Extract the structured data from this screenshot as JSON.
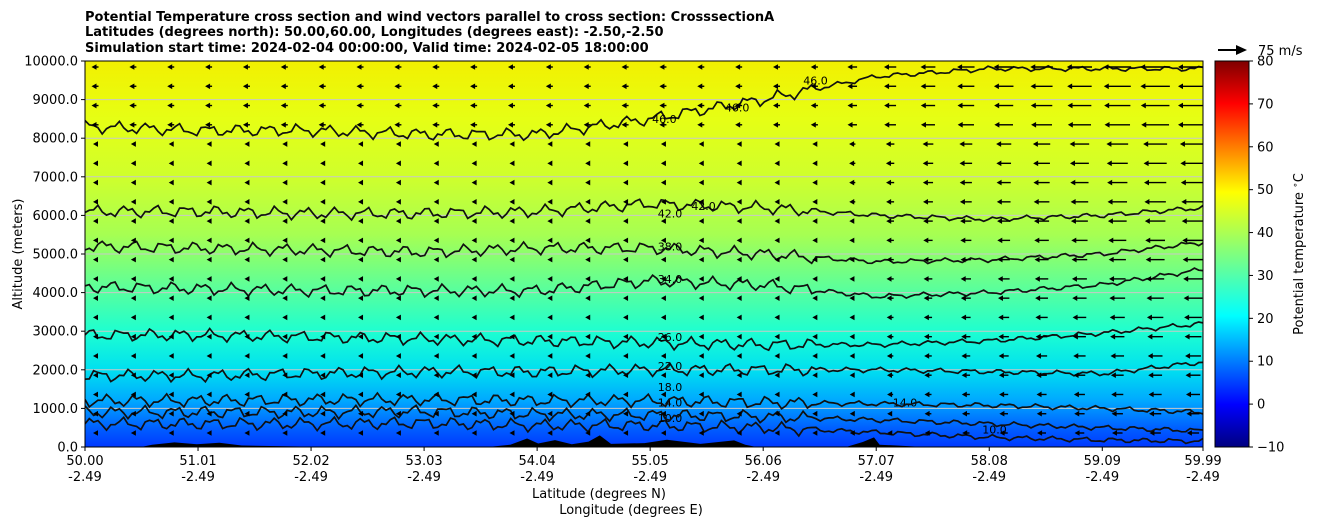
{
  "chart_data": {
    "type": "heatmap",
    "title_lines": [
      "Potential Temperature cross section and wind vectors parallel to cross section: CrosssectionA",
      "Latitudes (degrees north): 50.00,60.00, Longitudes (degrees east): -2.50,-2.50",
      "Simulation start time: 2024-02-04 00:00:00, Valid time: 2024-02-05 18:00:00"
    ],
    "xlabel_lines": [
      "Latitude (degrees N)",
      "Longitude (degrees E)"
    ],
    "ylabel": "Altitude (meters)",
    "x_range": [
      50.0,
      59.99
    ],
    "ylim": [
      0,
      10000
    ],
    "x_ticks": [
      {
        "value": 50.0,
        "lat": "50.00",
        "lon": "-2.49"
      },
      {
        "value": 51.01,
        "lat": "51.01",
        "lon": "-2.49"
      },
      {
        "value": 52.02,
        "lat": "52.02",
        "lon": "-2.49"
      },
      {
        "value": 53.03,
        "lat": "53.03",
        "lon": "-2.49"
      },
      {
        "value": 54.04,
        "lat": "54.04",
        "lon": "-2.49"
      },
      {
        "value": 55.05,
        "lat": "55.05",
        "lon": "-2.49"
      },
      {
        "value": 56.06,
        "lat": "56.06",
        "lon": "-2.49"
      },
      {
        "value": 57.07,
        "lat": "57.07",
        "lon": "-2.49"
      },
      {
        "value": 58.08,
        "lat": "58.08",
        "lon": "-2.49"
      },
      {
        "value": 59.09,
        "lat": "59.09",
        "lon": "-2.49"
      },
      {
        "value": 59.99,
        "lat": "59.99",
        "lon": "-2.49"
      }
    ],
    "y_ticks": [
      {
        "value": 0,
        "label": "0.0"
      },
      {
        "value": 1000,
        "label": "1000.0"
      },
      {
        "value": 2000,
        "label": "2000.0"
      },
      {
        "value": 3000,
        "label": "3000.0"
      },
      {
        "value": 4000,
        "label": "4000.0"
      },
      {
        "value": 5000,
        "label": "5000.0"
      },
      {
        "value": 6000,
        "label": "6000.0"
      },
      {
        "value": 7000,
        "label": "7000.0"
      },
      {
        "value": 8000,
        "label": "8000.0"
      },
      {
        "value": 9000,
        "label": "9000.0"
      },
      {
        "value": 10000,
        "label": "10000.0"
      }
    ],
    "horizontal_grid": true,
    "colorbar": {
      "label": "Potential temperature $^\\circ$C",
      "range": [
        -10,
        80
      ],
      "ticks": [
        {
          "value": -10,
          "label": "−10"
        },
        {
          "value": 0,
          "label": "0"
        },
        {
          "value": 10,
          "label": "10"
        },
        {
          "value": 20,
          "label": "20"
        },
        {
          "value": 30,
          "label": "30"
        },
        {
          "value": 40,
          "label": "40"
        },
        {
          "value": 50,
          "label": "50"
        },
        {
          "value": 60,
          "label": "60"
        },
        {
          "value": 70,
          "label": "70"
        },
        {
          "value": 80,
          "label": "80"
        }
      ],
      "colormap": "jet"
    },
    "quiver_key": {
      "label": "75 m/s",
      "value": 75
    },
    "contours": [
      {
        "level": 10,
        "label": "10.0",
        "altitude_m": [
          600,
          600,
          600,
          620,
          560,
          560,
          500,
          380,
          250,
          180,
          150
        ],
        "labeled_at": [
          [
            55.1,
            750
          ],
          [
            58.0,
            450
          ]
        ]
      },
      {
        "level": 14,
        "label": "14.0",
        "altitude_m": [
          900,
          900,
          900,
          920,
          850,
          830,
          790,
          700,
          600,
          500,
          420
        ],
        "labeled_at": [
          [
            55.1,
            1150
          ],
          [
            57.2,
            1150
          ]
        ]
      },
      {
        "level": 18,
        "label": "18.0",
        "altitude_m": [
          1200,
          1200,
          1220,
          1230,
          1200,
          1200,
          1150,
          1120,
          1080,
          1000,
          900
        ],
        "labeled_at": [
          [
            55.1,
            1550
          ]
        ]
      },
      {
        "level": 22,
        "label": "22.0",
        "altitude_m": [
          1850,
          1850,
          1900,
          1950,
          1950,
          2000,
          2000,
          2000,
          1950,
          1900,
          2200
        ],
        "labeled_at": [
          [
            55.1,
            2100
          ]
        ]
      },
      {
        "level": 26,
        "label": "26.0",
        "altitude_m": [
          2900,
          2900,
          2850,
          2800,
          2750,
          2700,
          2650,
          2650,
          2750,
          2950,
          3200
        ],
        "labeled_at": [
          [
            55.1,
            2850
          ]
        ]
      },
      {
        "level": 34,
        "label": "34.0",
        "altitude_m": [
          4150,
          4100,
          4050,
          4050,
          4050,
          4300,
          4200,
          3900,
          4000,
          4200,
          4600
        ],
        "labeled_at": [
          [
            55.1,
            4350
          ]
        ]
      },
      {
        "level": 38,
        "label": "38.0",
        "altitude_m": [
          5200,
          5150,
          5100,
          5050,
          5150,
          5150,
          5000,
          4800,
          4850,
          5000,
          5300
        ],
        "labeled_at": [
          [
            55.1,
            5200
          ]
        ]
      },
      {
        "level": 42,
        "label": "42.0",
        "altitude_m": [
          6100,
          6100,
          6050,
          6050,
          6100,
          6300,
          6200,
          6000,
          5900,
          6000,
          6200
        ],
        "labeled_at": [
          [
            55.1,
            6050
          ],
          [
            55.4,
            6250
          ]
        ]
      },
      {
        "level": 46,
        "label": "46.0",
        "altitude_m": [
          8300,
          8200,
          8200,
          8100,
          8100,
          8500,
          9000,
          9600,
          9800,
          9800,
          9800
        ],
        "labeled_at": [
          [
            55.05,
            8500
          ],
          [
            55.7,
            8800
          ],
          [
            56.4,
            9500
          ]
        ]
      }
    ],
    "wind": {
      "direction": "mostly negative (toward lower latitude)",
      "max_speed_m_s": 75
    }
  }
}
